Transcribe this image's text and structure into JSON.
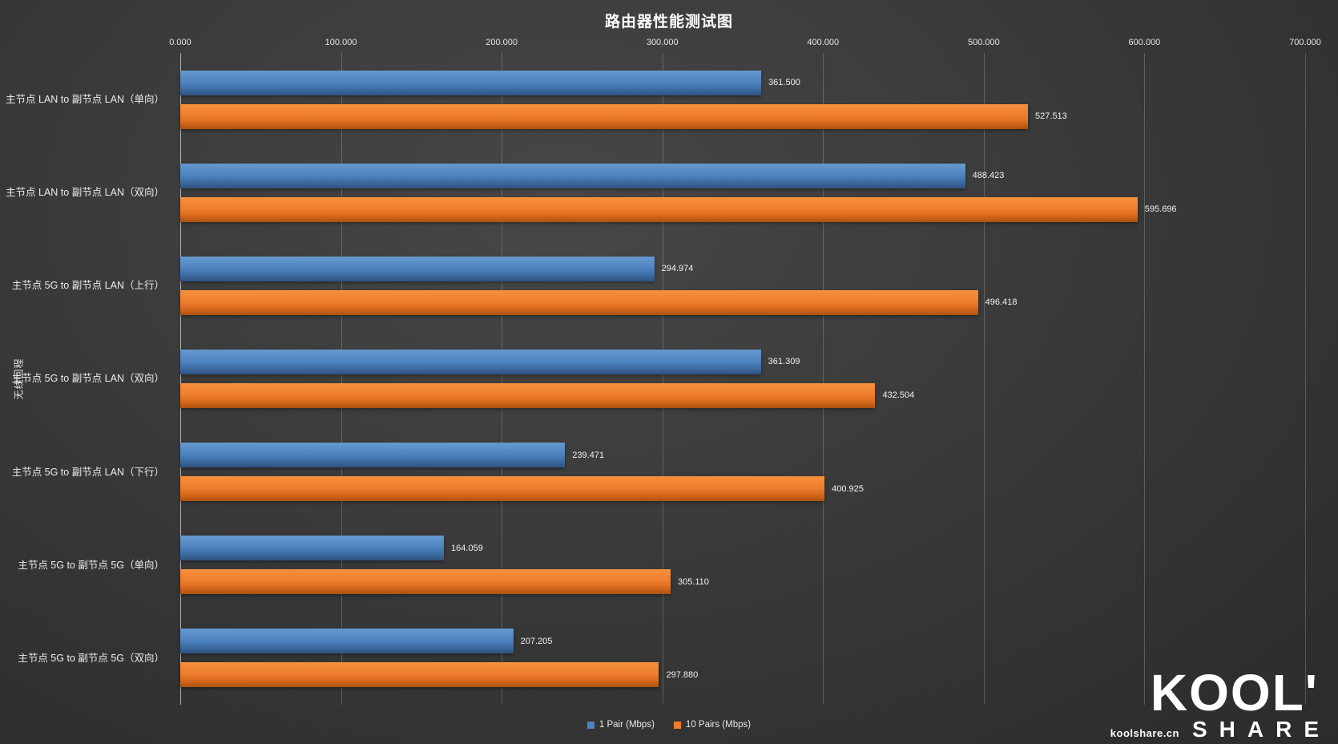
{
  "chart_data": {
    "type": "bar",
    "orientation": "horizontal",
    "title": "路由器性能测试图",
    "axis_label": "无线回程",
    "xlim": [
      0,
      700
    ],
    "xticks": [
      "0.000",
      "100.000",
      "200.000",
      "300.000",
      "400.000",
      "500.000",
      "600.000",
      "700.000"
    ],
    "grid": true,
    "legend_position": "bottom",
    "categories": [
      "主节点 LAN to 副节点 LAN（单向）",
      "主节点 LAN to 副节点 LAN（双向）",
      "主节点 5G to 副节点 LAN（上行）",
      "主节点 5G to 副节点 LAN（双向）",
      "主节点 5G to 副节点 LAN（下行）",
      "主节点 5G to 副节点 5G（单向）",
      "主节点 5G to 副节点 5G（双向）"
    ],
    "series": [
      {
        "name": "1 Pair (Mbps)",
        "color": "#4d83c0",
        "values": [
          361.5,
          488.423,
          294.974,
          361.309,
          239.471,
          164.059,
          207.205
        ],
        "labels": [
          "361.500",
          "488.423",
          "294.974",
          "361.309",
          "239.471",
          "164.059",
          "207.205"
        ]
      },
      {
        "name": "10 Pairs (Mbps)",
        "color": "#ee7d2e",
        "values": [
          527.513,
          595.696,
          496.418,
          432.504,
          400.925,
          305.11,
          297.88
        ],
        "labels": [
          "527.513",
          "595.696",
          "496.418",
          "432.504",
          "400.925",
          "305.110",
          "297.880"
        ]
      }
    ]
  },
  "watermark": {
    "brand_top": "KOOL'",
    "brand_bottom": "SHARE",
    "site": "koolshare.cn"
  }
}
